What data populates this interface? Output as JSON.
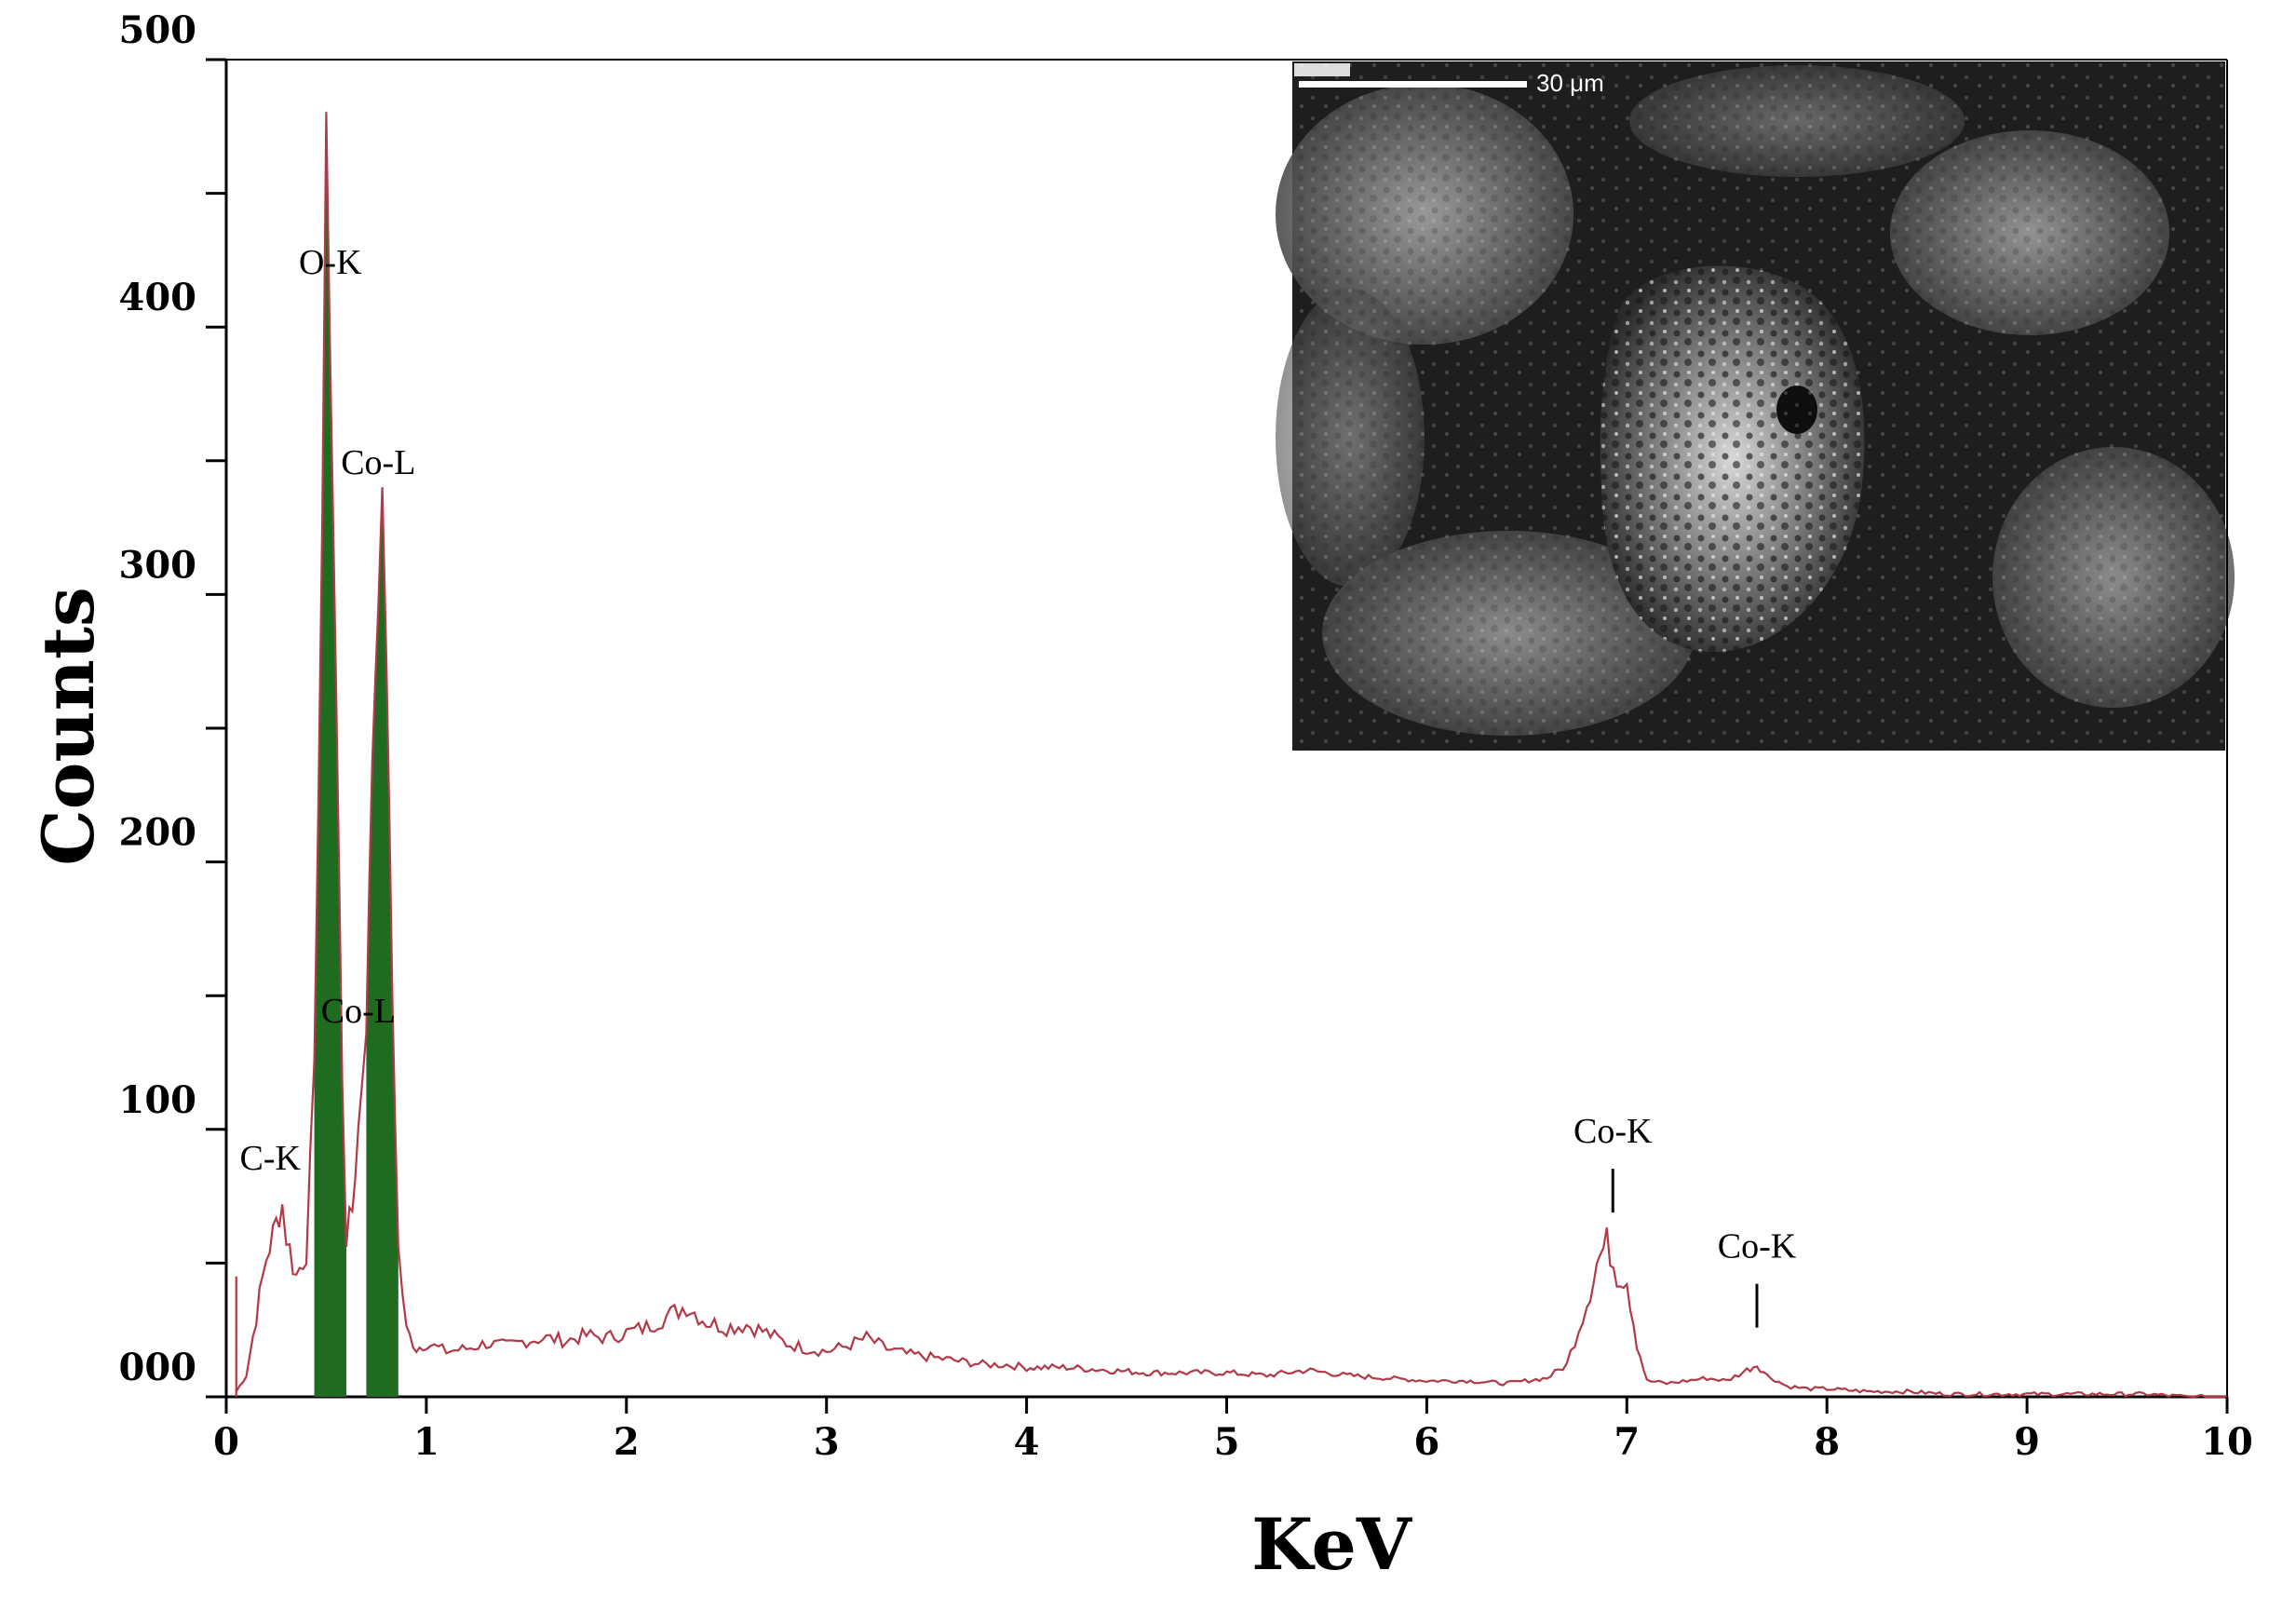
{
  "chart_data": {
    "type": "line",
    "title": "",
    "xlabel": "KeV",
    "ylabel": "Counts",
    "xlim": [
      0,
      10
    ],
    "ylim": [
      0,
      500
    ],
    "x_ticks": [
      {
        "value": 0,
        "label": "0"
      },
      {
        "value": 1,
        "label": "1"
      },
      {
        "value": 2,
        "label": "2"
      },
      {
        "value": 3,
        "label": "3"
      },
      {
        "value": 4,
        "label": "4"
      },
      {
        "value": 5,
        "label": "5"
      },
      {
        "value": 6,
        "label": "6"
      },
      {
        "value": 7,
        "label": "7"
      },
      {
        "value": 8,
        "label": "8"
      },
      {
        "value": 9,
        "label": "9"
      },
      {
        "value": 10,
        "label": "10"
      }
    ],
    "y_ticks": [
      {
        "value": 0,
        "label": "000"
      },
      {
        "value": 100,
        "label": "100"
      },
      {
        "value": 200,
        "label": "200"
      },
      {
        "value": 300,
        "label": "300"
      },
      {
        "value": 400,
        "label": "400"
      },
      {
        "value": 500,
        "label": "500"
      }
    ],
    "grid": false,
    "spectrum_color": "#b03a48",
    "peak_fill_color": "#1f6b1f",
    "series": [
      {
        "x": [
          0.05,
          0.1,
          0.15,
          0.2,
          0.25,
          0.28,
          0.3,
          0.35,
          0.4,
          0.44,
          0.48,
          0.5,
          0.52,
          0.55,
          0.58,
          0.6,
          0.63,
          0.66,
          0.7,
          0.73,
          0.76,
          0.78,
          0.8,
          0.83,
          0.86,
          0.9,
          0.95,
          1.0,
          1.1,
          1.2,
          1.3,
          1.4,
          1.5,
          1.6,
          1.7,
          1.8,
          1.9,
          2.0,
          2.1,
          2.2,
          2.3,
          2.4,
          2.5,
          2.6,
          2.7,
          2.8,
          2.9,
          3.0,
          3.1,
          3.2,
          3.3,
          3.4,
          3.5,
          3.6,
          3.7,
          3.8,
          3.9,
          4.0,
          4.2,
          4.4,
          4.6,
          4.8,
          5.0,
          5.2,
          5.4,
          5.6,
          5.8,
          6.0,
          6.2,
          6.4,
          6.6,
          6.7,
          6.8,
          6.85,
          6.9,
          6.95,
          7.0,
          7.05,
          7.1,
          7.2,
          7.3,
          7.4,
          7.5,
          7.6,
          7.65,
          7.7,
          7.8,
          7.9,
          8.0,
          8.2,
          8.4,
          8.6,
          8.8,
          9.0,
          9.2,
          9.4,
          9.6,
          9.8,
          10.0
        ],
        "y": [
          2,
          8,
          30,
          52,
          65,
          72,
          60,
          45,
          55,
          120,
          330,
          475,
          390,
          260,
          120,
          60,
          70,
          100,
          140,
          240,
          300,
          335,
          280,
          150,
          55,
          25,
          18,
          20,
          17,
          18,
          20,
          19,
          21,
          22,
          21,
          23,
          22,
          24,
          26,
          30,
          34,
          28,
          26,
          27,
          24,
          20,
          18,
          17,
          19,
          22,
          18,
          16,
          15,
          14,
          13,
          12,
          12,
          11,
          11,
          10,
          9,
          9,
          9,
          8,
          10,
          8,
          7,
          6,
          6,
          5,
          7,
          12,
          35,
          50,
          58,
          46,
          44,
          20,
          6,
          5,
          6,
          7,
          6,
          10,
          12,
          8,
          4,
          3,
          3,
          2,
          2,
          1,
          1,
          1,
          1,
          1,
          1,
          0,
          0
        ]
      }
    ],
    "annotations": [
      {
        "label": "O-K",
        "x": 0.52,
        "y": 420
      },
      {
        "label": "Co-L",
        "x": 0.76,
        "y": 345
      },
      {
        "label": "Co-L",
        "x": 0.66,
        "y": 140
      },
      {
        "label": "C-K",
        "x": 0.22,
        "y": 85
      },
      {
        "label": "Co-K",
        "x": 6.93,
        "y": 95
      },
      {
        "label": "Co-K",
        "x": 7.65,
        "y": 52
      }
    ],
    "inset": {
      "type": "SEM micrograph",
      "scale_bar_label": "30 μm"
    }
  }
}
